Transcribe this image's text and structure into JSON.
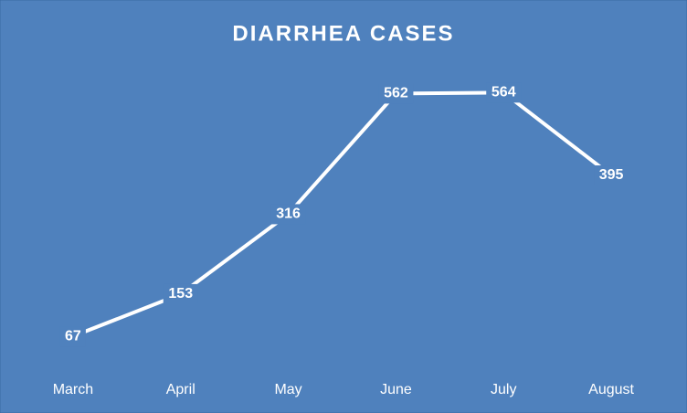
{
  "chart_data": {
    "type": "line",
    "title": "DIARRHEA CASES",
    "categories": [
      "March",
      "April",
      "May",
      "June",
      "July",
      "August"
    ],
    "values": [
      67,
      153,
      316,
      562,
      564,
      395
    ],
    "color": "#ffffff",
    "background": "#4f81bd",
    "ylim": [
      0,
      600
    ]
  }
}
